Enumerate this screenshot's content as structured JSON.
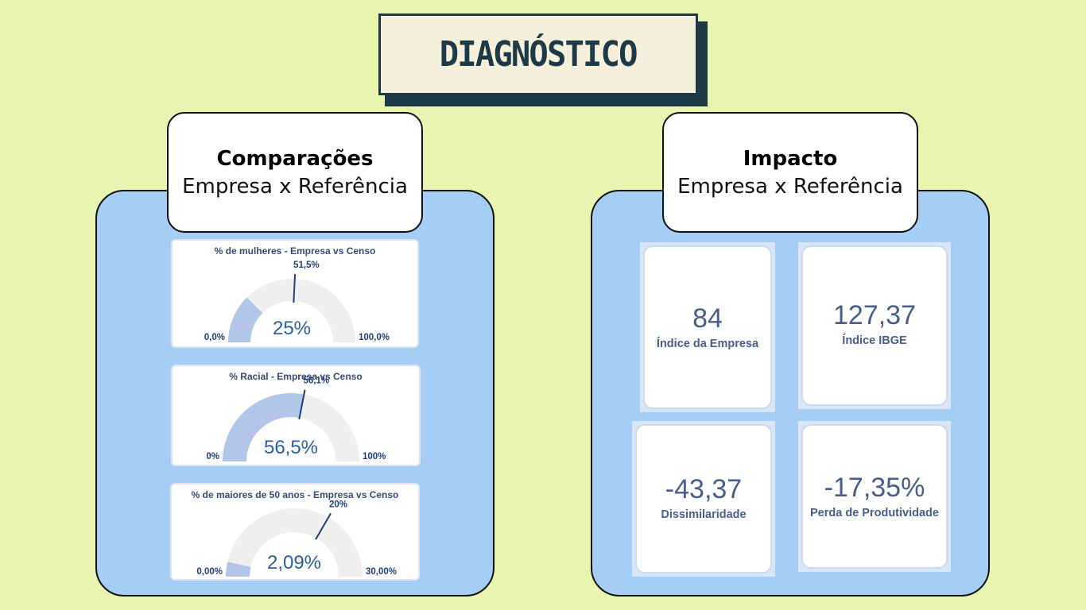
{
  "header": {
    "title": "DIAGNÓSTICO"
  },
  "left_panel": {
    "heading": "Comparações",
    "subheading": "Empresa x Referência",
    "gauges": [
      {
        "title": "% de mulheres - Empresa vs Censo",
        "center_label": "25%",
        "min_label": "0,0%",
        "max_label": "100,0%",
        "target_label": "51,5%",
        "value_fraction": 0.25,
        "target_fraction": 0.515
      },
      {
        "title": "% Racial - Empresa vs Censo",
        "center_label": "56,5%",
        "min_label": "0%",
        "max_label": "100%",
        "target_label": "56,1%",
        "value_fraction": 0.565,
        "target_fraction": 0.561
      },
      {
        "title": "% de maiores de 50 anos - Empresa vs Censo",
        "center_label": "2,09%",
        "min_label": "0,00%",
        "max_label": "30,00%",
        "target_label": "20%",
        "value_fraction": 0.0697,
        "target_fraction": 0.6667
      }
    ]
  },
  "right_panel": {
    "heading": "Impacto",
    "subheading": "Empresa x Referência",
    "kpis": [
      {
        "value": "84",
        "label": "Índice da Empresa"
      },
      {
        "value": "127,37",
        "label": "Índice IBGE"
      },
      {
        "value": "-43,37",
        "label": "Dissimilaridade"
      },
      {
        "value": "-17,35%",
        "label": "Perda de Produtividade"
      }
    ]
  },
  "colors": {
    "background": "#e8f5b0",
    "panel": "#a6cdf5",
    "title_dark": "#1e3a46",
    "gauge_fill": "#b3c6ea",
    "gauge_track": "#efefef",
    "gauge_text": "#2c5fa0"
  }
}
